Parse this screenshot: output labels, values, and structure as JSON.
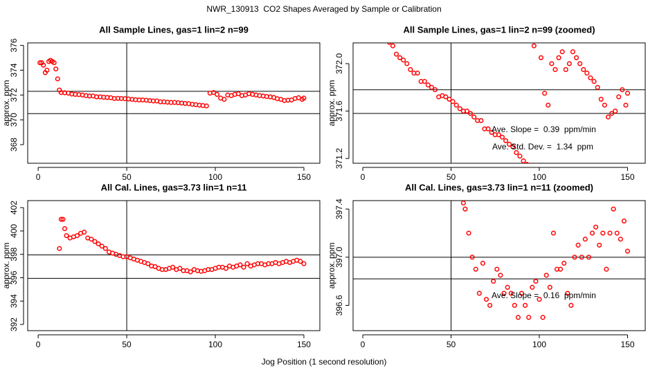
{
  "title": "NWR_130913  CO2 Shapes Averaged by Sample or Calibration",
  "xlabel": "Jog Position (1 second resolution)",
  "chart_data": [
    {
      "type": "scatter",
      "title": "All Sample Lines, gas=1 lin=2 n=99",
      "ylabel": "approx. ppm",
      "color": "#ff0000",
      "x": [
        1,
        2,
        3,
        4,
        5,
        6,
        7,
        8,
        9,
        10,
        11,
        12,
        13,
        15,
        17,
        19,
        21,
        23,
        25,
        27,
        29,
        31,
        33,
        35,
        37,
        39,
        41,
        43,
        45,
        47,
        49,
        51,
        53,
        55,
        57,
        59,
        61,
        63,
        65,
        67,
        69,
        71,
        73,
        75,
        77,
        79,
        81,
        83,
        85,
        87,
        89,
        91,
        93,
        95,
        97,
        99,
        101,
        103,
        105,
        107,
        109,
        111,
        113,
        115,
        117,
        119,
        121,
        123,
        125,
        127,
        129,
        131,
        133,
        135,
        137,
        139,
        141,
        143,
        145,
        147,
        149,
        150
      ],
      "values": [
        374.6,
        374.6,
        374.4,
        373.8,
        374.0,
        374.7,
        374.8,
        374.7,
        374.6,
        374.1,
        373.3,
        372.4,
        372.2,
        372.18,
        372.15,
        372.08,
        372.05,
        372.03,
        372.0,
        371.95,
        371.92,
        371.92,
        371.85,
        371.85,
        371.82,
        371.8,
        371.78,
        371.72,
        371.73,
        371.72,
        371.7,
        371.68,
        371.65,
        371.62,
        371.6,
        371.6,
        371.58,
        371.55,
        371.52,
        371.52,
        371.45,
        371.45,
        371.42,
        371.4,
        371.4,
        371.38,
        371.35,
        371.32,
        371.3,
        371.25,
        371.22,
        371.18,
        371.15,
        371.12,
        372.15,
        372.2,
        372.05,
        371.75,
        371.65,
        372.0,
        371.95,
        372.05,
        372.1,
        371.95,
        372.0,
        372.1,
        372.05,
        372.0,
        371.95,
        371.92,
        371.88,
        371.85,
        371.8,
        371.7,
        371.65,
        371.55,
        371.58,
        371.6,
        371.72,
        371.78,
        371.65,
        371.75
      ],
      "xlim": [
        -5.9,
        159
      ],
      "xticks": [
        0,
        50,
        100,
        150
      ],
      "ylim": [
        366.5,
        376.2
      ],
      "yticks": [
        368,
        370,
        372,
        374,
        376
      ],
      "hlines": [
        372.3,
        370.5
      ],
      "vline": 50
    },
    {
      "type": "scatter",
      "title": "All Sample Lines, gas=1 lin=2 n=99 (zoomed)",
      "ylabel": "approx. ppm",
      "color": "#ff0000",
      "x": [
        15,
        17,
        19,
        21,
        23,
        25,
        27,
        29,
        31,
        33,
        35,
        37,
        39,
        41,
        43,
        45,
        47,
        49,
        51,
        53,
        55,
        57,
        59,
        61,
        63,
        65,
        67,
        69,
        71,
        73,
        75,
        77,
        79,
        81,
        83,
        85,
        87,
        89,
        91,
        93,
        95,
        97,
        99,
        101,
        103,
        105,
        107,
        109,
        111,
        113,
        115,
        117,
        119,
        121,
        123,
        125,
        127,
        129,
        131,
        133,
        135,
        137,
        139,
        141,
        143,
        145,
        147,
        149,
        150
      ],
      "values": [
        372.18,
        372.15,
        372.08,
        372.05,
        372.03,
        372.0,
        371.95,
        371.92,
        371.92,
        371.85,
        371.85,
        371.82,
        371.8,
        371.78,
        371.72,
        371.73,
        371.72,
        371.7,
        371.68,
        371.65,
        371.62,
        371.6,
        371.6,
        371.58,
        371.55,
        371.52,
        371.52,
        371.45,
        371.45,
        371.42,
        371.4,
        371.4,
        371.38,
        371.35,
        371.32,
        371.3,
        371.25,
        371.22,
        371.18,
        371.15,
        371.12,
        372.15,
        372.2,
        372.05,
        371.75,
        371.65,
        372.0,
        371.95,
        372.05,
        372.1,
        371.95,
        372.0,
        372.1,
        372.05,
        372.0,
        371.95,
        371.92,
        371.88,
        371.85,
        371.8,
        371.7,
        371.65,
        371.55,
        371.58,
        371.6,
        371.72,
        371.78,
        371.65,
        371.75
      ],
      "xlim": [
        -5.5,
        160
      ],
      "xticks": [
        0,
        50,
        100,
        150
      ],
      "ylim": [
        371.16,
        372.175
      ],
      "yticks": [
        371.2,
        371.6,
        {
          "value": 372,
          "label": "372.0"
        }
      ],
      "hlines": [
        371.78,
        371.58
      ],
      "vline": 50,
      "annotations": [
        "Ave. Slope =  0.39  ppm/min",
        "Ave. Std. Dev. =  1.34  ppm"
      ]
    },
    {
      "type": "scatter",
      "title": "All Cal. Lines, gas=3.73 lin=1 n=11",
      "ylabel": "approx. ppm",
      "color": "#ff0000",
      "x": [
        12,
        13,
        14,
        15,
        16,
        18,
        20,
        22,
        24,
        26,
        28,
        30,
        32,
        34,
        36,
        38,
        40,
        42,
        44,
        46,
        48,
        50,
        52,
        54,
        56,
        58,
        60,
        62,
        64,
        66,
        68,
        70,
        72,
        74,
        76,
        78,
        80,
        82,
        84,
        86,
        88,
        90,
        92,
        94,
        96,
        98,
        100,
        102,
        104,
        106,
        108,
        110,
        112,
        114,
        116,
        118,
        120,
        122,
        124,
        126,
        128,
        130,
        132,
        134,
        136,
        138,
        140,
        142,
        144,
        146,
        148,
        150
      ],
      "values": [
        398.5,
        401,
        401,
        400.2,
        399.6,
        399.4,
        399.5,
        399.6,
        399.8,
        399.9,
        399.4,
        399.3,
        399.1,
        398.9,
        398.7,
        398.5,
        398.2,
        398.1,
        398.0,
        397.9,
        397.8,
        397.8,
        397.7,
        397.6,
        397.5,
        397.4,
        397.3,
        397.2,
        397.0,
        396.95,
        396.8,
        396.7,
        396.7,
        396.8,
        396.9,
        396.7,
        396.8,
        396.6,
        396.6,
        396.5,
        396.7,
        396.6,
        396.55,
        396.6,
        396.7,
        396.7,
        396.8,
        396.9,
        396.9,
        396.8,
        397.0,
        396.9,
        397.0,
        397.1,
        396.9,
        397.2,
        397.0,
        397.1,
        397.2,
        397.2,
        397.1,
        397.2,
        397.2,
        397.3,
        397.2,
        397.3,
        397.4,
        397.3,
        397.4,
        397.5,
        397.4,
        397.2
      ],
      "xlim": [
        -5.9,
        159
      ],
      "xticks": [
        0,
        50,
        100,
        150
      ],
      "ylim": [
        391.47,
        402.6
      ],
      "yticks": [
        392,
        394,
        396,
        398,
        400,
        402
      ],
      "hlines": [
        397.95,
        395.95
      ],
      "vline": 50
    },
    {
      "type": "scatter",
      "title": "All Cal. Lines, gas=3.73 lin=1 n=11 (zoomed)",
      "ylabel": "approx. ppm",
      "color": "#ff0000",
      "x": [
        57,
        58,
        60,
        62,
        64,
        66,
        68,
        70,
        72,
        74,
        76,
        78,
        80,
        82,
        84,
        86,
        88,
        90,
        92,
        94,
        96,
        98,
        100,
        102,
        104,
        106,
        108,
        110,
        112,
        114,
        116,
        118,
        120,
        122,
        124,
        126,
        128,
        130,
        132,
        134,
        136,
        138,
        140,
        142,
        144,
        146,
        148,
        150
      ],
      "values": [
        397.45,
        397.4,
        397.2,
        397.0,
        396.9,
        396.7,
        396.95,
        396.65,
        396.6,
        396.8,
        396.9,
        396.85,
        396.7,
        396.75,
        396.7,
        396.6,
        396.5,
        396.7,
        396.6,
        396.5,
        396.75,
        396.8,
        396.65,
        396.5,
        396.85,
        396.75,
        397.2,
        396.9,
        396.9,
        396.95,
        396.7,
        396.6,
        397.0,
        397.1,
        397.0,
        397.15,
        397.0,
        397.2,
        397.25,
        397.1,
        397.2,
        396.9,
        397.2,
        397.4,
        397.2,
        397.15,
        397.3,
        397.05
      ],
      "xlim": [
        -5.5,
        160
      ],
      "xticks": [
        0,
        50,
        100,
        150
      ],
      "ylim": [
        396.39,
        397.47
      ],
      "yticks": [
        396.6,
        {
          "value": 397,
          "label": "397.0"
        },
        397.4
      ],
      "hlines": [
        397.0,
        396.82
      ],
      "vline": 50,
      "annotations": [
        "Ave. Slope =  0.16  ppm/min"
      ]
    }
  ]
}
